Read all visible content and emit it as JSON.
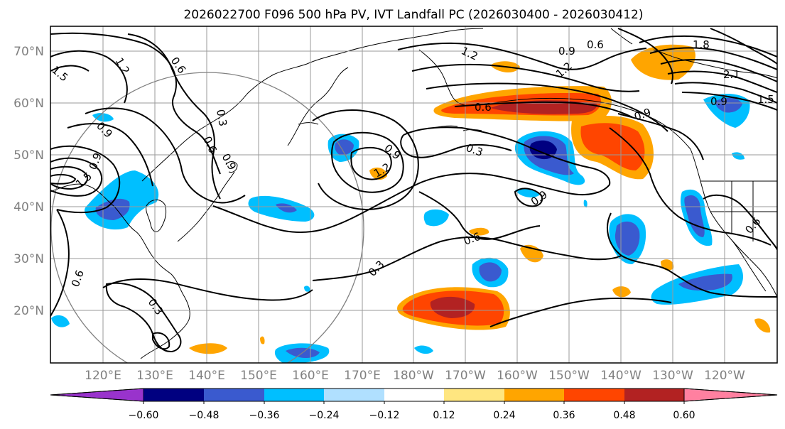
{
  "title": "2026022700 F096 500 hPa PV, IVT Landfall PC (2026030400 - 2026030412)",
  "lat_labels": [
    "70°N",
    "60°N",
    "50°N",
    "40°N",
    "30°N",
    "20°N"
  ],
  "lon_labels": [
    "120°E",
    "130°E",
    "140°E",
    "150°E",
    "160°E",
    "170°E",
    "180°W",
    "170°W",
    "160°W",
    "150°W",
    "140°W",
    "130°W",
    "120°W"
  ],
  "colorbar": {
    "colors": [
      "#9933cc",
      "#000080",
      "#3a5acf",
      "#00bfff",
      "#b0e0ff",
      "#ffffff",
      "#ffe680",
      "#ffa500",
      "#ff4500",
      "#b22222",
      "#ff80a0"
    ],
    "tick_labels": [
      "−0.60",
      "−0.48",
      "−0.36",
      "−0.24",
      "−0.12",
      "0.12",
      "0.24",
      "0.36",
      "0.48",
      "0.60"
    ]
  },
  "contour_labels": [
    "1.2",
    "1.5",
    "0.6",
    "0.3",
    "0.6",
    "0.9",
    "0.6",
    "1.2",
    "0.9",
    "1.2",
    "1.8",
    "2.1",
    "1.5",
    "0.9",
    "0.6",
    "0.9",
    "0.3",
    "0.9",
    "1.2",
    "0.9",
    "0.6",
    "0.3",
    "0.6",
    "0.3",
    "0.9",
    "0.6",
    "1.5",
    "0.9"
  ]
}
